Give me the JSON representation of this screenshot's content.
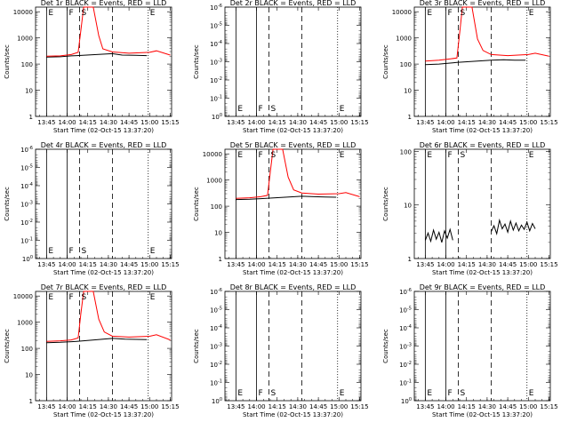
{
  "chart_data": [
    {
      "title": "Det 1r BLACK = Events, RED = LLD",
      "type": "line",
      "ylabel": "Counts/sec",
      "xlabel": "Start Time (02-Oct-15 13:37:20)",
      "x_ticks": [
        "13:45",
        "14:00",
        "14:15",
        "14:30",
        "14:45",
        "15:00",
        "15:15"
      ],
      "y_scale": "log",
      "y_ticks": [
        "1",
        "10",
        "100",
        "1000",
        "10000"
      ],
      "ylim": [
        1,
        15000
      ],
      "markers": [
        {
          "t": "13:45",
          "style": "solid",
          "label": "E"
        },
        {
          "t": "14:00",
          "style": "solid",
          "label": "F"
        },
        {
          "t": "14:09",
          "style": "dashed",
          "label": "S"
        },
        {
          "t": "14:33",
          "style": "dashed",
          "label": ""
        },
        {
          "t": "14:59",
          "style": "dotted",
          "label": "E"
        }
      ],
      "series": [
        {
          "name": "Events",
          "color": "#000000",
          "points": [
            [
              "13:45",
              185
            ],
            [
              "13:55",
              190
            ],
            [
              "14:03",
              205
            ],
            [
              "14:07",
              210
            ],
            [
              "14:33",
              250
            ],
            [
              "14:40",
              220
            ],
            [
              "14:50",
              215
            ],
            [
              "14:58",
              210
            ]
          ]
        },
        {
          "name": "LLD",
          "color": "#ff0000",
          "points": [
            [
              "13:45",
              200
            ],
            [
              "13:55",
              205
            ],
            [
              "14:03",
              230
            ],
            [
              "14:08",
              280
            ],
            [
              "14:10",
              2000
            ],
            [
              "14:12",
              15000
            ],
            [
              "14:19",
              15000
            ],
            [
              "14:23",
              1200
            ],
            [
              "14:26",
              380
            ],
            [
              "14:33",
              290
            ],
            [
              "14:45",
              260
            ],
            [
              "15:00",
              280
            ],
            [
              "15:05",
              320
            ],
            [
              "15:15",
              220
            ]
          ]
        }
      ]
    },
    {
      "title": "Det 2r BLACK = Events, RED = LLD",
      "type": "line",
      "ylabel": "Counts/sec",
      "xlabel": "Start Time (02-Oct-15 13:37:20)",
      "x_ticks": [
        "13:45",
        "14:00",
        "14:15",
        "14:30",
        "14:45",
        "15:00",
        "15:15"
      ],
      "y_scale": "log",
      "y_ticks": [
        "10^0",
        "10^-1",
        "10^-2",
        "10^-3",
        "10^-4",
        "10^-5",
        "10^-6"
      ],
      "ylim": [
        1,
        1e-06
      ],
      "markers": [
        {
          "t": "13:45",
          "style": "solid",
          "label": "E"
        },
        {
          "t": "14:00",
          "style": "solid",
          "label": "F"
        },
        {
          "t": "14:09",
          "style": "dashed",
          "label": "S"
        },
        {
          "t": "14:33",
          "style": "dashed",
          "label": ""
        },
        {
          "t": "14:59",
          "style": "dotted",
          "label": "E"
        }
      ],
      "series": []
    },
    {
      "title": "Det 3r BLACK = Events, RED = LLD",
      "type": "line",
      "ylabel": "Counts/sec",
      "xlabel": "Start Time (02-Oct-15 13:37:20)",
      "x_ticks": [
        "13:45",
        "14:00",
        "14:15",
        "14:30",
        "14:45",
        "15:00",
        "15:15"
      ],
      "y_scale": "log",
      "y_ticks": [
        "1",
        "10",
        "100",
        "1000",
        "10000"
      ],
      "ylim": [
        1,
        15000
      ],
      "markers": [
        {
          "t": "13:45",
          "style": "solid",
          "label": "E"
        },
        {
          "t": "14:00",
          "style": "solid",
          "label": "F"
        },
        {
          "t": "14:09",
          "style": "dashed",
          "label": "S"
        },
        {
          "t": "14:33",
          "style": "dashed",
          "label": ""
        },
        {
          "t": "14:59",
          "style": "dotted",
          "label": "E"
        }
      ],
      "series": [
        {
          "name": "Events",
          "color": "#000000",
          "points": [
            [
              "13:45",
              95
            ],
            [
              "13:55",
              100
            ],
            [
              "14:04",
              110
            ],
            [
              "14:08",
              115
            ],
            [
              "14:33",
              140
            ],
            [
              "14:42",
              145
            ],
            [
              "14:50",
              140
            ],
            [
              "14:58",
              140
            ]
          ]
        },
        {
          "name": "LLD",
          "color": "#ff0000",
          "points": [
            [
              "13:45",
              130
            ],
            [
              "13:55",
              140
            ],
            [
              "14:04",
              160
            ],
            [
              "14:08",
              170
            ],
            [
              "14:10",
              1500
            ],
            [
              "14:12",
              15000
            ],
            [
              "14:19",
              15000
            ],
            [
              "14:23",
              900
            ],
            [
              "14:27",
              330
            ],
            [
              "14:33",
              230
            ],
            [
              "14:45",
              210
            ],
            [
              "15:00",
              230
            ],
            [
              "15:05",
              260
            ],
            [
              "15:15",
              200
            ]
          ]
        }
      ]
    },
    {
      "title": "Det 4r BLACK = Events, RED = LLD",
      "type": "line",
      "ylabel": "Counts/sec",
      "xlabel": "Start Time (02-Oct-15 13:37:20)",
      "x_ticks": [
        "13:45",
        "14:00",
        "14:15",
        "14:30",
        "14:45",
        "15:00",
        "15:15"
      ],
      "y_scale": "log",
      "y_ticks": [
        "10^0",
        "10^-1",
        "10^-2",
        "10^-3",
        "10^-4",
        "10^-5",
        "10^-6"
      ],
      "ylim": [
        1,
        1e-06
      ],
      "markers": [
        {
          "t": "13:45",
          "style": "solid",
          "label": "E"
        },
        {
          "t": "14:00",
          "style": "solid",
          "label": "F"
        },
        {
          "t": "14:09",
          "style": "dashed",
          "label": "S"
        },
        {
          "t": "14:33",
          "style": "dashed",
          "label": ""
        },
        {
          "t": "14:59",
          "style": "dotted",
          "label": "E"
        }
      ],
      "series": []
    },
    {
      "title": "Det 5r BLACK = Events, RED = LLD",
      "type": "line",
      "ylabel": "Counts/sec",
      "xlabel": "Start Time (02-Oct-15 13:37:20)",
      "x_ticks": [
        "13:45",
        "14:00",
        "14:15",
        "14:30",
        "14:45",
        "15:00",
        "15:15"
      ],
      "y_scale": "log",
      "y_ticks": [
        "1",
        "10",
        "100",
        "1000",
        "10000"
      ],
      "ylim": [
        1,
        15000
      ],
      "markers": [
        {
          "t": "13:45",
          "style": "solid",
          "label": "E"
        },
        {
          "t": "14:00",
          "style": "solid",
          "label": "F"
        },
        {
          "t": "14:09",
          "style": "dashed",
          "label": "S"
        },
        {
          "t": "14:33",
          "style": "dashed",
          "label": ""
        },
        {
          "t": "14:59",
          "style": "dotted",
          "label": "E"
        }
      ],
      "series": [
        {
          "name": "Events",
          "color": "#000000",
          "points": [
            [
              "13:45",
              180
            ],
            [
              "13:55",
              185
            ],
            [
              "14:03",
              195
            ],
            [
              "14:07",
              200
            ],
            [
              "14:33",
              240
            ],
            [
              "14:42",
              230
            ],
            [
              "14:50",
              225
            ],
            [
              "14:58",
              220
            ]
          ]
        },
        {
          "name": "LLD",
          "color": "#ff0000",
          "points": [
            [
              "13:45",
              200
            ],
            [
              "13:55",
              210
            ],
            [
              "14:03",
              230
            ],
            [
              "14:08",
              260
            ],
            [
              "14:10",
              2000
            ],
            [
              "14:12",
              15000
            ],
            [
              "14:19",
              15000
            ],
            [
              "14:23",
              1300
            ],
            [
              "14:27",
              420
            ],
            [
              "14:33",
              320
            ],
            [
              "14:45",
              290
            ],
            [
              "15:00",
              300
            ],
            [
              "15:05",
              330
            ],
            [
              "15:15",
              230
            ]
          ]
        }
      ]
    },
    {
      "title": "Det 6r BLACK = Events, RED = LLD",
      "type": "line",
      "ylabel": "Counts/sec",
      "xlabel": "Start Time (02-Oct-15 13:37:20)",
      "x_ticks": [
        "13:45",
        "14:00",
        "14:15",
        "14:30",
        "14:45",
        "15:00",
        "15:15"
      ],
      "y_scale": "log",
      "y_ticks": [
        "1",
        "10",
        "100"
      ],
      "ylim": [
        1,
        110
      ],
      "markers": [
        {
          "t": "13:45",
          "style": "solid",
          "label": "E"
        },
        {
          "t": "14:00",
          "style": "solid",
          "label": "F"
        },
        {
          "t": "14:09",
          "style": "dashed",
          "label": "S"
        },
        {
          "t": "14:33",
          "style": "dashed",
          "label": ""
        },
        {
          "t": "14:59",
          "style": "dotted",
          "label": "E"
        }
      ],
      "series": [
        {
          "name": "Events",
          "color": "#000000",
          "points": [
            [
              "13:45",
              2.2
            ],
            [
              "13:47",
              3.0
            ],
            [
              "13:49",
              2.1
            ],
            [
              "13:51",
              3.4
            ],
            [
              "13:53",
              2.3
            ],
            [
              "13:55",
              3.1
            ],
            [
              "13:57",
              2.0
            ],
            [
              "13:59",
              3.3
            ],
            [
              "14:01",
              2.4
            ],
            [
              "14:03",
              3.5
            ],
            [
              "14:05",
              2.2
            ]
          ]
        },
        {
          "name": "Events",
          "color": "#000000",
          "points": [
            [
              "14:33",
              3.2
            ],
            [
              "14:35",
              4.1
            ],
            [
              "14:37",
              2.9
            ],
            [
              "14:39",
              5.2
            ],
            [
              "14:41",
              3.6
            ],
            [
              "14:43",
              4.4
            ],
            [
              "14:45",
              3.1
            ],
            [
              "14:47",
              5.0
            ],
            [
              "14:49",
              3.4
            ],
            [
              "14:51",
              4.6
            ],
            [
              "14:53",
              3.3
            ],
            [
              "14:55",
              4.2
            ],
            [
              "14:57",
              3.5
            ],
            [
              "14:59",
              4.8
            ],
            [
              "15:01",
              3.3
            ],
            [
              "15:03",
              4.5
            ],
            [
              "15:05",
              3.6
            ]
          ]
        }
      ]
    },
    {
      "title": "Det 7r BLACK = Events, RED = LLD",
      "type": "line",
      "ylabel": "Counts/sec",
      "xlabel": "Start Time (02-Oct-15 13:37:20)",
      "x_ticks": [
        "13:45",
        "14:00",
        "14:15",
        "14:30",
        "14:45",
        "15:00",
        "15:15"
      ],
      "y_scale": "log",
      "y_ticks": [
        "1",
        "10",
        "100",
        "1000",
        "10000"
      ],
      "ylim": [
        1,
        15000
      ],
      "markers": [
        {
          "t": "13:45",
          "style": "solid",
          "label": "E"
        },
        {
          "t": "14:00",
          "style": "solid",
          "label": "F"
        },
        {
          "t": "14:09",
          "style": "dashed",
          "label": "S"
        },
        {
          "t": "14:33",
          "style": "dashed",
          "label": ""
        },
        {
          "t": "14:59",
          "style": "dotted",
          "label": "E"
        }
      ],
      "series": [
        {
          "name": "Events",
          "color": "#000000",
          "points": [
            [
              "13:45",
              165
            ],
            [
              "13:55",
              170
            ],
            [
              "14:03",
              180
            ],
            [
              "14:07",
              185
            ],
            [
              "14:33",
              240
            ],
            [
              "14:42",
              225
            ],
            [
              "14:50",
              220
            ],
            [
              "14:58",
              215
            ]
          ]
        },
        {
          "name": "LLD",
          "color": "#ff0000",
          "points": [
            [
              "13:45",
              185
            ],
            [
              "13:55",
              195
            ],
            [
              "14:03",
              210
            ],
            [
              "14:08",
              250
            ],
            [
              "14:10",
              2200
            ],
            [
              "14:12",
              15000
            ],
            [
              "14:19",
              15000
            ],
            [
              "14:23",
              1300
            ],
            [
              "14:27",
              420
            ],
            [
              "14:33",
              290
            ],
            [
              "14:45",
              270
            ],
            [
              "15:00",
              290
            ],
            [
              "15:05",
              330
            ],
            [
              "15:15",
              210
            ]
          ]
        }
      ]
    },
    {
      "title": "Det 8r BLACK = Events, RED = LLD",
      "type": "line",
      "ylabel": "Counts/sec",
      "xlabel": "Start Time (02-Oct-15 13:37:20)",
      "x_ticks": [
        "13:45",
        "14:00",
        "14:15",
        "14:30",
        "14:45",
        "15:00",
        "15:15"
      ],
      "y_scale": "log",
      "y_ticks": [
        "10^0",
        "10^-1",
        "10^-2",
        "10^-3",
        "10^-4",
        "10^-5",
        "10^-6"
      ],
      "ylim": [
        1,
        1e-06
      ],
      "markers": [
        {
          "t": "13:45",
          "style": "solid",
          "label": "E"
        },
        {
          "t": "14:00",
          "style": "solid",
          "label": "F"
        },
        {
          "t": "14:09",
          "style": "dashed",
          "label": "S"
        },
        {
          "t": "14:33",
          "style": "dashed",
          "label": ""
        },
        {
          "t": "14:59",
          "style": "dotted",
          "label": "E"
        }
      ],
      "series": []
    },
    {
      "title": "Det 9r BLACK = Events, RED = LLD",
      "type": "line",
      "ylabel": "Counts/sec",
      "xlabel": "Start Time (02-Oct-15 13:37:20)",
      "x_ticks": [
        "13:45",
        "14:00",
        "14:15",
        "14:30",
        "14:45",
        "15:00",
        "15:15"
      ],
      "y_scale": "log",
      "y_ticks": [
        "10^0",
        "10^-1",
        "10^-2",
        "10^-3",
        "10^-4",
        "10^-5",
        "10^-6"
      ],
      "ylim": [
        1,
        1e-06
      ],
      "markers": [
        {
          "t": "13:45",
          "style": "solid",
          "label": "E"
        },
        {
          "t": "14:00",
          "style": "solid",
          "label": "F"
        },
        {
          "t": "14:09",
          "style": "dashed",
          "label": "S"
        },
        {
          "t": "14:33",
          "style": "dashed",
          "label": ""
        },
        {
          "t": "14:59",
          "style": "dotted",
          "label": "E"
        }
      ],
      "series": []
    }
  ]
}
